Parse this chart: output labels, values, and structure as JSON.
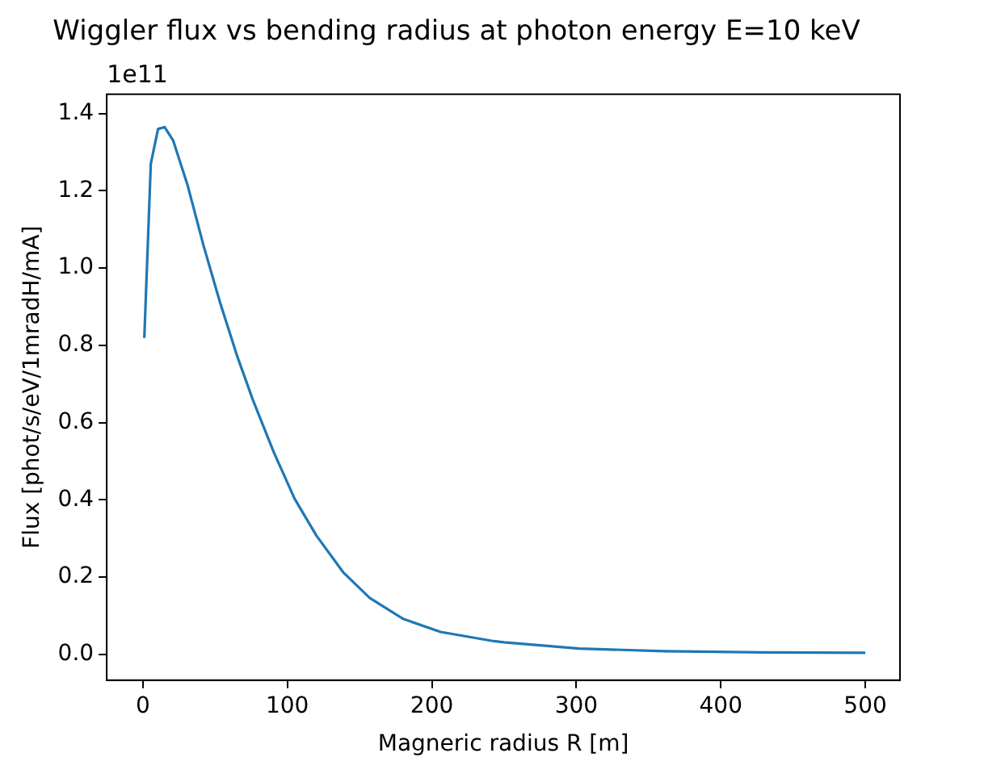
{
  "chart_data": {
    "type": "line",
    "title": "Wiggler flux vs bending radius at photon energy E=10 keV",
    "xlabel": "Magneric radius R [m]",
    "ylabel": "Flux [phot/s/eV/1mradH/mA]",
    "annotations": [
      "1e11"
    ],
    "x": [
      1,
      5.5,
      10.5,
      15,
      21,
      31,
      42,
      53.5,
      65,
      76,
      90.5,
      105,
      120,
      138.5,
      157,
      180,
      206,
      243,
      250,
      302,
      361,
      430,
      500
    ],
    "series": [
      {
        "color": "#1f77b4",
        "values": [
          0.819,
          1.27,
          1.36,
          1.365,
          1.33,
          1.214,
          1.058,
          0.91,
          0.775,
          0.66,
          0.524,
          0.403,
          0.308,
          0.213,
          0.146,
          0.092,
          0.058,
          0.034,
          0.031,
          0.015,
          0.008,
          0.005,
          0.004
        ]
      }
    ],
    "xlim": [
      -25,
      524
    ],
    "xticks": [
      0,
      100,
      200,
      300,
      400,
      500
    ],
    "ylim": [
      -0.067,
      1.45
    ],
    "yticks": [
      {
        "value": 0,
        "label": "0.0"
      },
      0.2,
      0.4,
      0.6,
      0.8,
      {
        "value": 1,
        "label": "1.0"
      },
      1.2,
      1.4
    ],
    "grid": false,
    "legend": false,
    "marker": "none",
    "line_style": "solid"
  }
}
